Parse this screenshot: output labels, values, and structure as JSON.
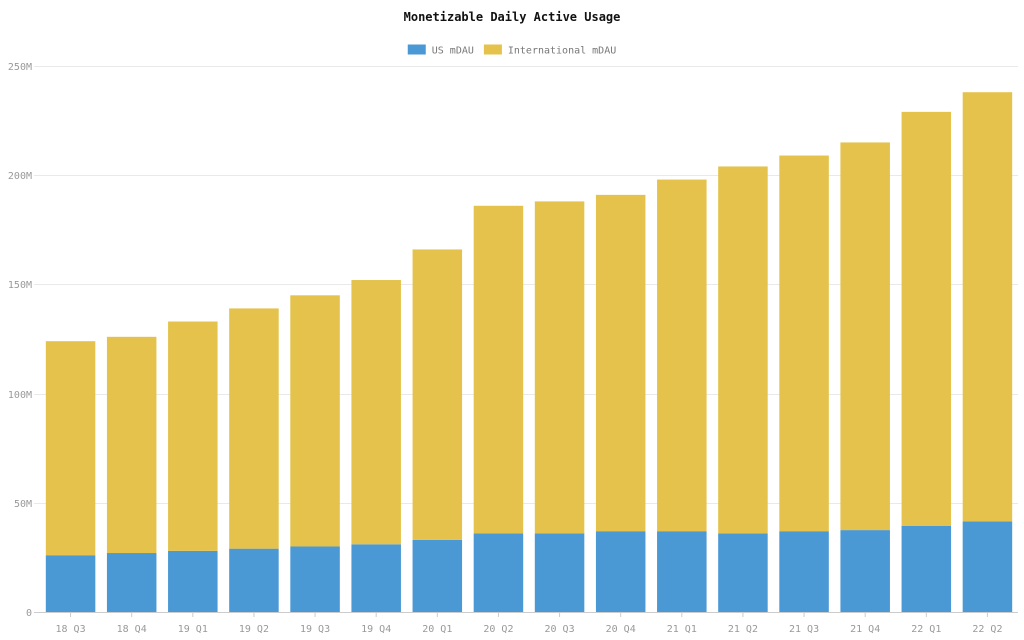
{
  "chart_data": {
    "type": "bar",
    "stacked": true,
    "title": "Monetizable Daily Active Usage",
    "xlabel": "",
    "ylabel": "",
    "categories": [
      "18 Q3",
      "18 Q4",
      "19 Q1",
      "19 Q2",
      "19 Q3",
      "19 Q4",
      "20 Q1",
      "20 Q2",
      "20 Q3",
      "20 Q4",
      "21 Q1",
      "21 Q2",
      "21 Q3",
      "21 Q4",
      "22 Q1",
      "22 Q2"
    ],
    "series": [
      {
        "name": "US mDAU",
        "color": "#4a98d4",
        "values": [
          26,
          27,
          28,
          29,
          30,
          31,
          33,
          36,
          36,
          37,
          37,
          36,
          37,
          37.5,
          39.5,
          41.5
        ]
      },
      {
        "name": "International mDAU",
        "color": "#e4c24b",
        "values": [
          98,
          99,
          105,
          110,
          115,
          121,
          133,
          150,
          152,
          154,
          161,
          168,
          172,
          177.5,
          189.5,
          196.5
        ]
      }
    ],
    "ylim": [
      0,
      250
    ],
    "yticks": [
      0,
      50,
      100,
      150,
      200,
      250
    ],
    "ytick_labels": [
      "0",
      "50M",
      "100M",
      "150M",
      "200M",
      "250M"
    ],
    "grid": true,
    "legend_position": "top-center"
  }
}
